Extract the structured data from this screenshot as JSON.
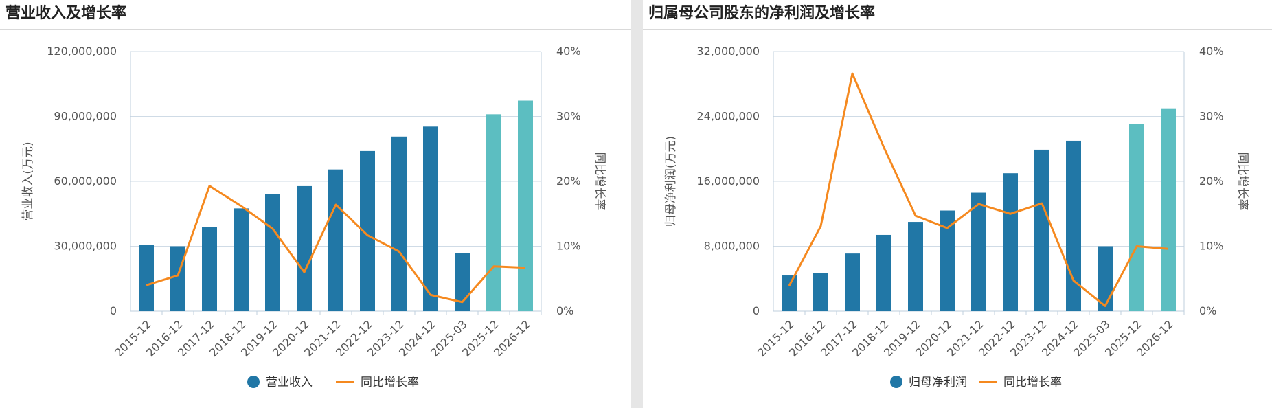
{
  "colors": {
    "bar": "#2177a6",
    "bar_forecast": "#5cbec1",
    "line": "#f5891f",
    "axis_text": "#555555",
    "grid": "#cfdbe6",
    "axis_line": "#bfcfdd"
  },
  "charts": [
    {
      "id": "left",
      "panel_title": "营业收入及增长率",
      "chart_data": {
        "type": "bar",
        "title": "营业收入及增长率",
        "categories": [
          "2015-12",
          "2016-12",
          "2017-12",
          "2018-12",
          "2019-12",
          "2020-12",
          "2021-12",
          "2022-12",
          "2023-12",
          "2024-12",
          "2025-03",
          "2025-12",
          "2026-12"
        ],
        "forecast_categories": [
          "2025-12",
          "2026-12"
        ],
        "ylabel": "营业收入(万元)",
        "ylabel_right": "同比增长率",
        "ylim": [
          0,
          120000000
        ],
        "y_ticks": [
          "0",
          "30,000,000",
          "60,000,000",
          "90,000,000",
          "120,000,000"
        ],
        "ylim_right": [
          0,
          40
        ],
        "y_ticks_right": [
          "0%",
          "10%",
          "20%",
          "30%",
          "40%"
        ],
        "series": [
          {
            "name": "营业收入",
            "type": "bar",
            "axis": "left",
            "values": [
              30500000,
              30000000,
              38800000,
              47500000,
              54000000,
              57800000,
              65500000,
              74000000,
              80700000,
              85300000,
              26700000,
              91000000,
              97300000
            ]
          },
          {
            "name": "同比增长率",
            "type": "line",
            "axis": "right",
            "values": [
              4.0,
              5.5,
              19.3,
              16.2,
              12.7,
              6.0,
              16.4,
              11.7,
              9.2,
              2.5,
              1.4,
              6.9,
              6.7
            ]
          }
        ],
        "legend": [
          "营业收入",
          "同比增长率"
        ],
        "legend_position": "bottom-center",
        "grid": true
      }
    },
    {
      "id": "right",
      "panel_title": "归属母公司股东的净利润及增长率",
      "chart_data": {
        "type": "bar",
        "title": "归属母公司股东的净利润及增长率",
        "categories": [
          "2015-12",
          "2016-12",
          "2017-12",
          "2018-12",
          "2019-12",
          "2020-12",
          "2021-12",
          "2022-12",
          "2023-12",
          "2024-12",
          "2025-03",
          "2025-12",
          "2026-12"
        ],
        "forecast_categories": [
          "2025-12",
          "2026-12"
        ],
        "ylabel": "归母净利润(万元)",
        "ylabel_right": "同比增长率",
        "ylim": [
          0,
          32000000
        ],
        "y_ticks": [
          "0",
          "8,000,000",
          "16,000,000",
          "24,000,000",
          "32,000,000"
        ],
        "ylim_right": [
          0,
          40
        ],
        "y_ticks_right": [
          "0%",
          "10%",
          "20%",
          "30%",
          "40%"
        ],
        "series": [
          {
            "name": "归母净利润",
            "type": "bar",
            "axis": "left",
            "values": [
              4400000,
              4700000,
              7100000,
              9400000,
              11000000,
              12400000,
              14600000,
              17000000,
              19900000,
              21000000,
              8000000,
              23100000,
              25000000
            ]
          },
          {
            "name": "同比增长率",
            "type": "line",
            "axis": "right",
            "values": [
              3.9,
              13.1,
              36.6,
              25.2,
              14.7,
              12.8,
              16.5,
              15.0,
              16.6,
              4.7,
              0.8,
              10.0,
              9.6
            ]
          }
        ],
        "legend": [
          "归母净利润",
          "同比增长率"
        ],
        "legend_position": "bottom-center",
        "grid": true
      }
    }
  ]
}
